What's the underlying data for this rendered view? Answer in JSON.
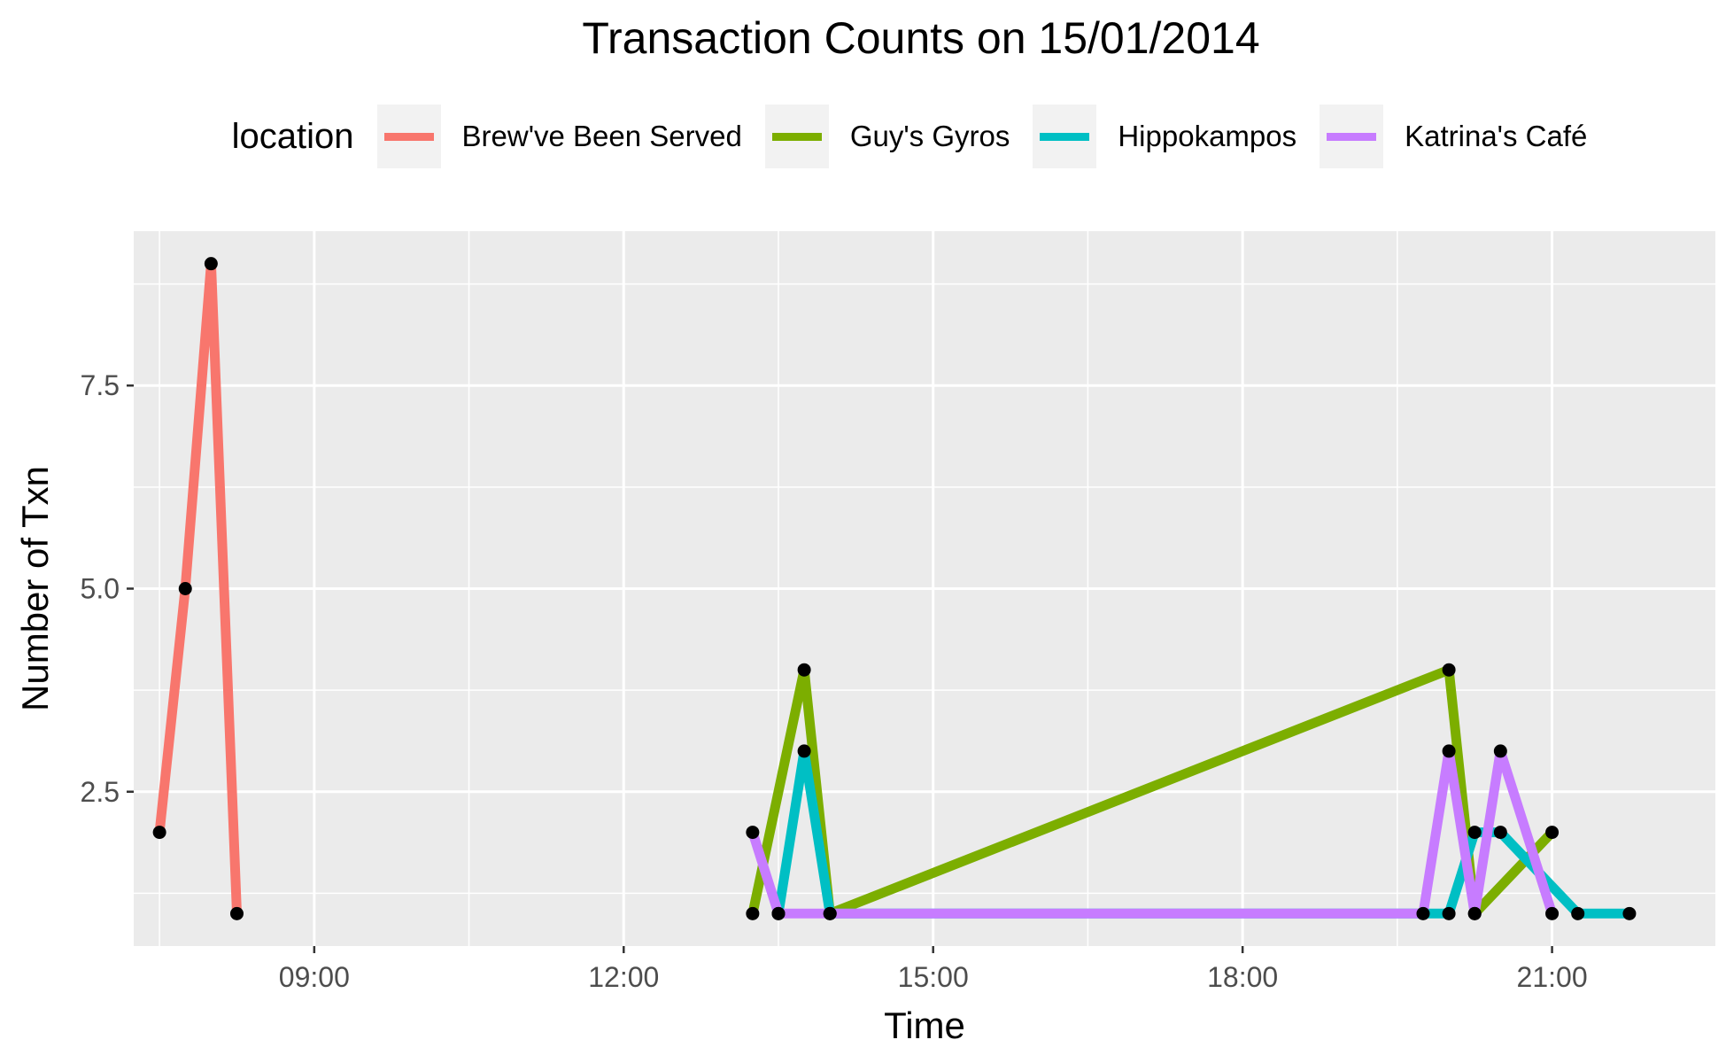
{
  "chart_data": {
    "type": "line",
    "title": "Transaction Counts on 15/01/2014",
    "xlabel": "Time",
    "ylabel": "Number of Txn",
    "legend_title": "location",
    "legend_position": "top",
    "grid": true,
    "x_ticks": [
      "09:00",
      "12:00",
      "15:00",
      "18:00",
      "21:00"
    ],
    "y_ticks": [
      "2.5",
      "5.0",
      "7.5"
    ],
    "xlim": [
      "07:15",
      "22:35"
    ],
    "ylim": [
      0.6,
      9.4
    ],
    "series": [
      {
        "name": "Brew've Been Served",
        "color": "#F8766D",
        "x": [
          "07:30",
          "07:45",
          "08:00",
          "08:15"
        ],
        "y": [
          2,
          5,
          9,
          1
        ]
      },
      {
        "name": "Guy's Gyros",
        "color": "#7CAE00",
        "x": [
          "13:15",
          "13:45",
          "14:00",
          "20:00",
          "20:15",
          "21:00"
        ],
        "y": [
          1,
          4,
          1,
          4,
          1,
          2
        ]
      },
      {
        "name": "Hippokampos",
        "color": "#00BFC4",
        "x": [
          "13:30",
          "13:45",
          "14:00",
          "20:00",
          "20:15",
          "20:30",
          "21:15",
          "21:45"
        ],
        "y": [
          1,
          3,
          1,
          1,
          2,
          2,
          1,
          1
        ]
      },
      {
        "name": "Katrina's Café",
        "color": "#C77CFF",
        "x": [
          "13:15",
          "13:30",
          "19:45",
          "20:00",
          "20:15",
          "20:30",
          "21:00"
        ],
        "y": [
          2,
          1,
          1,
          3,
          1,
          3,
          1
        ]
      }
    ]
  }
}
